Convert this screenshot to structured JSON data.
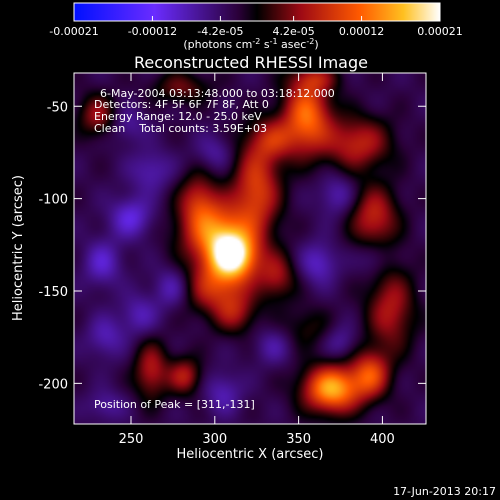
{
  "chart_data": {
    "type": "heatmap",
    "title": "Reconstructed RHESSI Image",
    "xlabel": "Heliocentric X (arcsec)",
    "ylabel": "Heliocentric Y (arcsec)",
    "xlim": [
      216,
      426
    ],
    "ylim": [
      -222,
      -32
    ],
    "xticks": [
      250,
      300,
      350,
      400
    ],
    "yticks": [
      -50,
      -100,
      -150,
      -200
    ],
    "grid": false,
    "colorbar": {
      "min": -0.00021,
      "max": 0.00021,
      "ticks": [
        "-0.00021",
        "-0.00012",
        "-4.2e-05",
        "4.2e-05",
        "0.00012",
        "0.00021"
      ],
      "ticks_values": [
        -0.00021,
        -0.00012,
        -4.2e-05,
        4.2e-05,
        0.00012,
        0.00021
      ],
      "units_parts": [
        "(photons cm",
        "-2",
        " s",
        "-1",
        " asec",
        "-2",
        ")"
      ]
    },
    "annotations": [
      "6-May-2004 03:13:48.000 to 03:18:12.000",
      "Detectors: 4F 5F 6F 7F 8F, Att 0",
      "Energy Range: 12.0 - 25.0 keV",
      "Clean    Total counts: 3.59E+03",
      "Position of Peak = [311,-131]"
    ],
    "peak": {
      "x": 311,
      "y": -131
    },
    "blobs": [
      {
        "x": 311,
        "y": -131,
        "amp": 0.00021,
        "sx": 10,
        "sy": 9
      },
      {
        "x": 300,
        "y": -118,
        "amp": 0.00015,
        "sx": 14,
        "sy": 12
      },
      {
        "x": 325,
        "y": -95,
        "amp": 0.00012,
        "sx": 10,
        "sy": 18
      },
      {
        "x": 300,
        "y": -148,
        "amp": 0.0001,
        "sx": 14,
        "sy": 10
      },
      {
        "x": 290,
        "y": -100,
        "amp": 8e-05,
        "sx": 8,
        "sy": 10
      },
      {
        "x": 337,
        "y": -142,
        "amp": 8e-05,
        "sx": 8,
        "sy": 9
      },
      {
        "x": 312,
        "y": -162,
        "amp": 7e-05,
        "sx": 9,
        "sy": 8
      },
      {
        "x": 355,
        "y": -55,
        "amp": 0.00015,
        "sx": 10,
        "sy": 14
      },
      {
        "x": 335,
        "y": -68,
        "amp": 8e-05,
        "sx": 10,
        "sy": 8
      },
      {
        "x": 385,
        "y": -70,
        "amp": 0.0001,
        "sx": 14,
        "sy": 10
      },
      {
        "x": 395,
        "y": -110,
        "amp": 0.0001,
        "sx": 10,
        "sy": 12
      },
      {
        "x": 405,
        "y": -160,
        "amp": 9e-05,
        "sx": 10,
        "sy": 16
      },
      {
        "x": 370,
        "y": -203,
        "amp": 0.00019,
        "sx": 12,
        "sy": 9
      },
      {
        "x": 393,
        "y": -195,
        "amp": 0.00012,
        "sx": 8,
        "sy": 9
      },
      {
        "x": 262,
        "y": -193,
        "amp": 9e-05,
        "sx": 7,
        "sy": 11
      },
      {
        "x": 282,
        "y": -196,
        "amp": 9e-05,
        "sx": 7,
        "sy": 7
      },
      {
        "x": 230,
        "y": -55,
        "amp": 8e-05,
        "sx": 8,
        "sy": 8
      },
      {
        "x": 280,
        "y": -40,
        "amp": 6e-05,
        "sx": 12,
        "sy": 6
      },
      {
        "x": 360,
        "y": -35,
        "amp": 6e-05,
        "sx": 10,
        "sy": 5
      },
      {
        "x": 355,
        "y": -170,
        "amp": 4e-05,
        "sx": 10,
        "sy": 8
      },
      {
        "x": 250,
        "y": -110,
        "amp": -7e-05,
        "sx": 9,
        "sy": 8
      },
      {
        "x": 233,
        "y": -135,
        "amp": -6e-05,
        "sx": 8,
        "sy": 9
      },
      {
        "x": 275,
        "y": -148,
        "amp": -6e-05,
        "sx": 8,
        "sy": 8
      },
      {
        "x": 255,
        "y": -163,
        "amp": -5e-05,
        "sx": 8,
        "sy": 8
      },
      {
        "x": 262,
        "y": -85,
        "amp": -5e-05,
        "sx": 9,
        "sy": 8
      },
      {
        "x": 235,
        "y": -175,
        "amp": -5e-05,
        "sx": 8,
        "sy": 8
      },
      {
        "x": 305,
        "y": -205,
        "amp": -5e-05,
        "sx": 8,
        "sy": 8
      },
      {
        "x": 335,
        "y": -180,
        "amp": -4e-05,
        "sx": 8,
        "sy": 7
      },
      {
        "x": 362,
        "y": -135,
        "amp": -6e-05,
        "sx": 8,
        "sy": 8
      },
      {
        "x": 373,
        "y": -98,
        "amp": -5e-05,
        "sx": 8,
        "sy": 8
      },
      {
        "x": 395,
        "y": -132,
        "amp": -4e-05,
        "sx": 7,
        "sy": 7
      },
      {
        "x": 248,
        "y": -60,
        "amp": -4e-05,
        "sx": 8,
        "sy": 7
      },
      {
        "x": 300,
        "y": -75,
        "amp": -4e-05,
        "sx": 8,
        "sy": 7
      },
      {
        "x": 375,
        "y": -178,
        "amp": -4e-05,
        "sx": 7,
        "sy": 7
      },
      {
        "x": 235,
        "y": -212,
        "amp": -4e-05,
        "sx": 8,
        "sy": 6
      }
    ]
  },
  "footer": {
    "timestamp": "17-Jun-2013 20:17"
  }
}
